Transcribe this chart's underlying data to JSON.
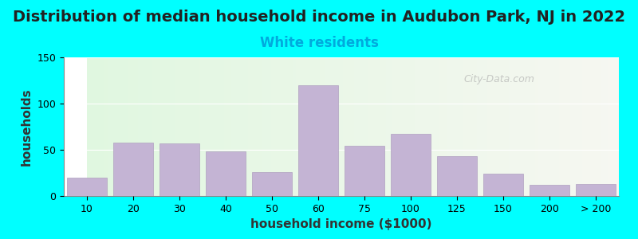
{
  "title": "Distribution of median household income in Audubon Park, NJ in 2022",
  "subtitle": "White residents",
  "xlabel": "household income ($1000)",
  "ylabel": "households",
  "background_outer": "#00FFFF",
  "bar_color": "#C4B4D4",
  "bar_edgecolor": "#B0A0C0",
  "categories": [
    "10",
    "20",
    "30",
    "40",
    "50",
    "60",
    "75",
    "100",
    "125",
    "150",
    "200",
    "> 200"
  ],
  "values": [
    20,
    58,
    57,
    48,
    26,
    120,
    54,
    67,
    43,
    24,
    12,
    13
  ],
  "ylim": [
    0,
    150
  ],
  "yticks": [
    0,
    50,
    100,
    150
  ],
  "watermark": "City-Data.com",
  "title_fontsize": 14,
  "subtitle_fontsize": 12,
  "subtitle_color": "#00AADD",
  "axis_label_fontsize": 11,
  "tick_fontsize": 9
}
